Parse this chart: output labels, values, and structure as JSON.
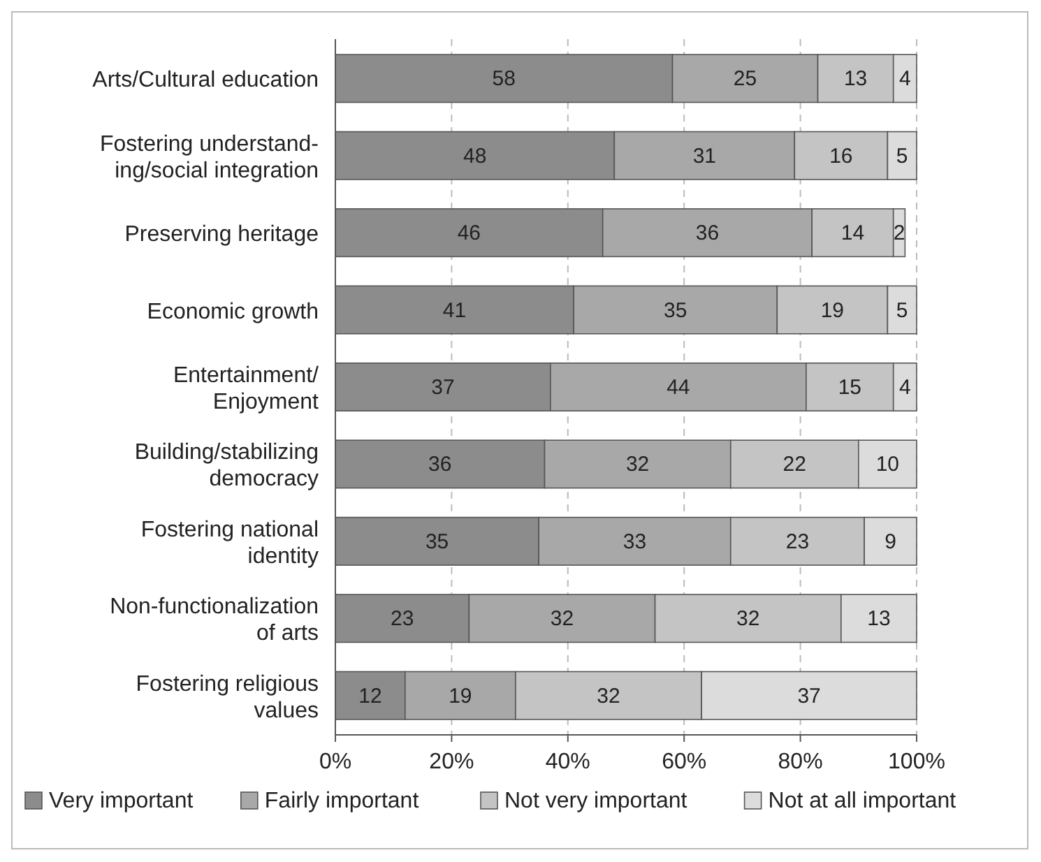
{
  "chart_data": {
    "type": "bar",
    "orientation": "horizontal",
    "stacked": true,
    "data_labels": true,
    "grid": "x",
    "legend": "bottom",
    "categories": [
      "Arts/Cultural education",
      "Fostering understand-\ning/social integration",
      "Preserving heritage",
      "Economic growth",
      "Entertainment/\nEnjoyment",
      "Building/stabilizing\ndemocracy",
      "Fostering national\nidentity",
      "Non-functionalization\nof arts",
      "Fostering religious\nvalues"
    ],
    "series": [
      {
        "name": "Very important",
        "color": "#8c8c8c",
        "values": [
          58,
          48,
          46,
          41,
          37,
          36,
          35,
          23,
          12
        ]
      },
      {
        "name": "Fairly important",
        "color": "#a8a8a8",
        "values": [
          25,
          31,
          36,
          35,
          44,
          32,
          33,
          32,
          19
        ]
      },
      {
        "name": "Not very important",
        "color": "#c4c4c4",
        "values": [
          13,
          16,
          14,
          19,
          15,
          22,
          23,
          32,
          32
        ]
      },
      {
        "name": "Not at all important",
        "color": "#dcdcdc",
        "values": [
          4,
          5,
          2,
          5,
          4,
          10,
          9,
          13,
          37
        ]
      }
    ],
    "xlim": [
      0,
      100
    ],
    "xticks": [
      {
        "value": 0,
        "label": "0%"
      },
      {
        "value": 20,
        "label": "20%"
      },
      {
        "value": 40,
        "label": "40%"
      },
      {
        "value": 60,
        "label": "60%"
      },
      {
        "value": 80,
        "label": "80%"
      },
      {
        "value": 100,
        "label": "100%"
      }
    ]
  }
}
